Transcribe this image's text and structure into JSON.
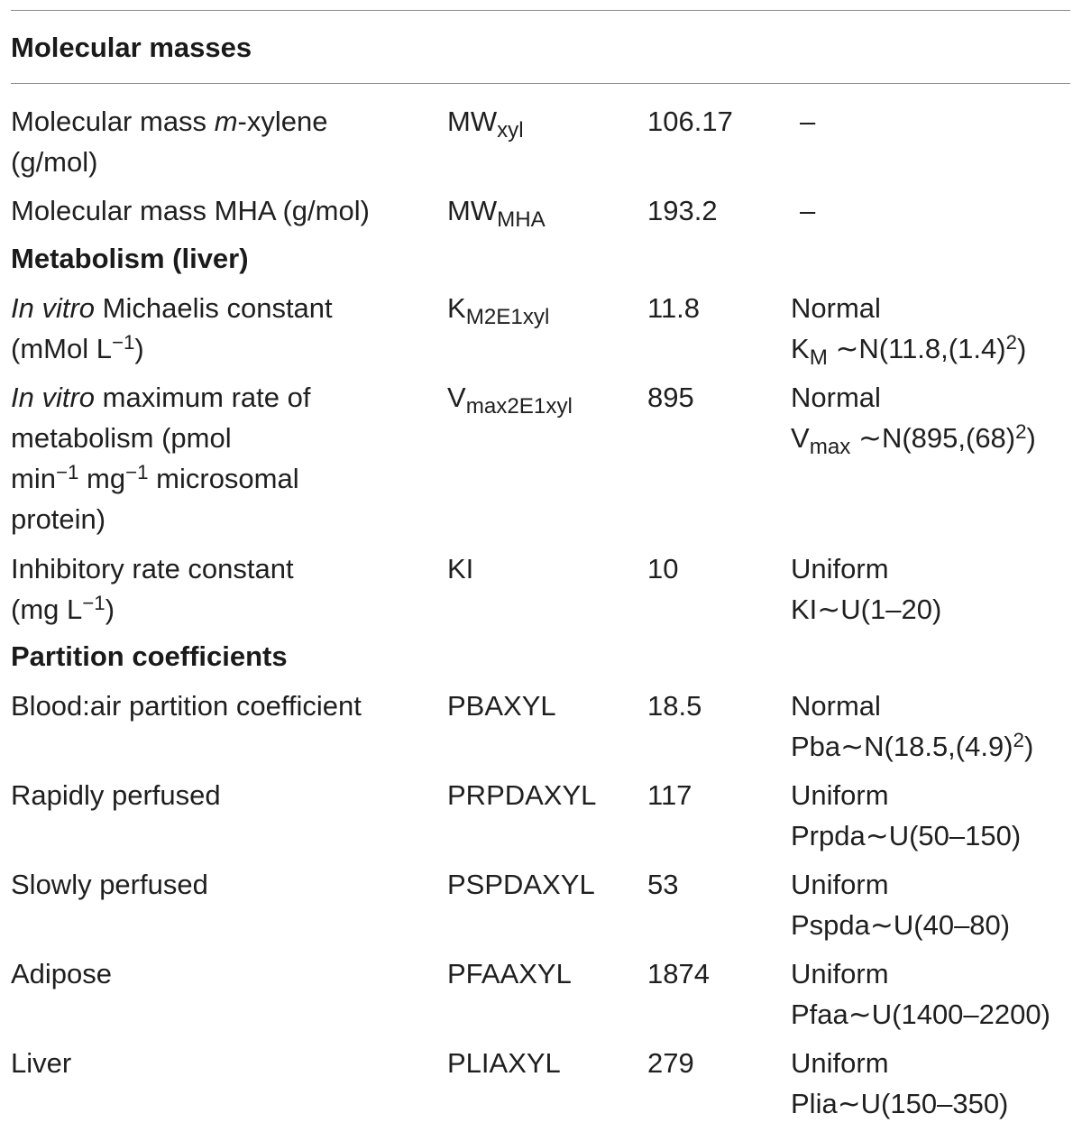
{
  "sections": {
    "molecular_masses": "Molecular masses",
    "metabolism": "Metabolism (liver)",
    "partition": "Partition coefficients"
  },
  "rows": {
    "mw_xyl": {
      "desc_a": "Molecular mass ",
      "desc_b": "m",
      "desc_c": "-xylene",
      "desc_d": "(g/mol)",
      "sym": "MW",
      "sym_sub": "xyl",
      "value": "106.17",
      "dist": "–"
    },
    "mw_mha": {
      "desc": "Molecular mass MHA (g/mol)",
      "sym": "MW",
      "sym_sub": "MHA",
      "value": "193.2",
      "dist": "–"
    },
    "km": {
      "desc_a": "In vitro",
      "desc_b": " Michaelis constant",
      "desc_c": "(mMol L",
      "desc_sup": "−1",
      "desc_d": ")",
      "sym": "K",
      "sym_sub": "M2E1xyl",
      "value": "11.8",
      "dist_type": "Normal",
      "dist_a": "K",
      "dist_sub": "M",
      "dist_b": " ∼N(11.8,(1.4)",
      "dist_sup": "2",
      "dist_c": ")"
    },
    "vmax": {
      "desc_a": "In vitro",
      "desc_b": " maximum rate of",
      "desc_c": "metabolism (pmol",
      "desc_d1": "min",
      "desc_sup1": "−1",
      "desc_d2": " mg",
      "desc_sup2": "−1",
      "desc_d3": " microsomal",
      "desc_e": "protein)",
      "sym": "V",
      "sym_sub": "max2E1xyl",
      "value": "895",
      "dist_type": "Normal",
      "dist_a": "V",
      "dist_sub": "max",
      "dist_b": " ∼N(895,(68)",
      "dist_sup": "2",
      "dist_c": ")"
    },
    "ki": {
      "desc_a": "Inhibitory rate constant",
      "desc_b": "(mg L",
      "desc_sup": "−1",
      "desc_c": ")",
      "sym": "KI",
      "value": "10",
      "dist_type": "Uniform",
      "dist": "KI∼U(1–20)"
    },
    "pba": {
      "desc": "Blood:air partition coefficient",
      "sym": "PBAXYL",
      "value": "18.5",
      "dist_type": "Normal",
      "dist_a": "Pba∼N(18.5,(4.9)",
      "dist_sup": "2",
      "dist_c": ")"
    },
    "prpd": {
      "desc": "Rapidly perfused",
      "sym": "PRPDAXYL",
      "value": "117",
      "dist_type": "Uniform",
      "dist": "Prpda∼U(50–150)"
    },
    "pspd": {
      "desc": "Slowly perfused",
      "sym": "PSPDAXYL",
      "value": "53",
      "dist_type": "Uniform",
      "dist": "Pspda∼U(40–80)"
    },
    "pfa": {
      "desc": "Adipose",
      "sym": "PFAAXYL",
      "value": "1874",
      "dist_type": "Uniform",
      "dist": "Pfaa∼U(1400–2200)"
    },
    "pli": {
      "desc": "Liver",
      "sym": "PLIAXYL",
      "value": "279",
      "dist_type": "Uniform",
      "dist": "Plia∼U(150–350)"
    }
  }
}
